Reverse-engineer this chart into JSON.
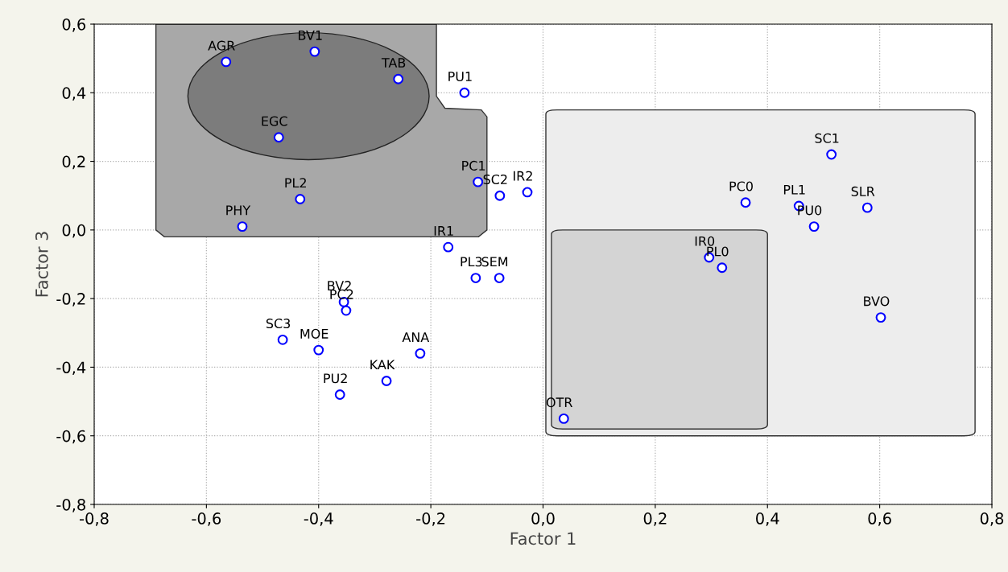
{
  "chart_data": {
    "type": "scatter",
    "xlabel": "Factor 1",
    "ylabel": "Factor 3",
    "xlim": [
      -0.8,
      0.8
    ],
    "ylim": [
      -0.8,
      0.6
    ],
    "xticks": [
      {
        "value": -0.8,
        "label": "-0,8"
      },
      {
        "value": -0.6,
        "label": "-0,6"
      },
      {
        "value": -0.4,
        "label": "-0,4"
      },
      {
        "value": -0.2,
        "label": "-0,2"
      },
      {
        "value": 0.0,
        "label": "0,0"
      },
      {
        "value": 0.2,
        "label": "0,2"
      },
      {
        "value": 0.4,
        "label": "0,4"
      },
      {
        "value": 0.6,
        "label": "0,6"
      },
      {
        "value": 0.8,
        "label": "0,8"
      }
    ],
    "yticks": [
      {
        "value": -0.8,
        "label": "-0,8"
      },
      {
        "value": -0.6,
        "label": "-0,6"
      },
      {
        "value": -0.4,
        "label": "-0,4"
      },
      {
        "value": -0.2,
        "label": "-0,2"
      },
      {
        "value": 0.0,
        "label": "0,0"
      },
      {
        "value": 0.2,
        "label": "0,2"
      },
      {
        "value": 0.4,
        "label": "0,4"
      },
      {
        "value": 0.6,
        "label": "0,6"
      }
    ],
    "grid": true,
    "marker": "circle",
    "series": [
      {
        "color": "#0000ff",
        "x": [
          -0.565,
          -0.407,
          -0.258,
          -0.14,
          -0.471,
          0.514,
          -0.116,
          -0.077,
          -0.028,
          -0.433,
          0.361,
          0.456,
          0.578,
          0.483,
          -0.536,
          -0.169,
          0.296,
          0.319,
          -0.12,
          -0.078,
          -0.355,
          -0.351,
          0.602,
          -0.464,
          -0.4,
          -0.219,
          -0.279,
          -0.362,
          0.037
        ],
        "values": [
          0.49,
          0.52,
          0.44,
          0.4,
          0.27,
          0.22,
          0.14,
          0.1,
          0.11,
          0.09,
          0.08,
          0.07,
          0.065,
          0.01,
          0.01,
          -0.05,
          -0.08,
          -0.11,
          -0.14,
          -0.14,
          -0.21,
          -0.235,
          -0.255,
          -0.32,
          -0.35,
          -0.36,
          -0.44,
          -0.48,
          -0.55
        ]
      }
    ],
    "annotations": [
      {
        "text": "AGR",
        "x": -0.565,
        "y": 0.49
      },
      {
        "text": "BV1",
        "x": -0.407,
        "y": 0.52
      },
      {
        "text": "TAB",
        "x": -0.258,
        "y": 0.44
      },
      {
        "text": "PU1",
        "x": -0.14,
        "y": 0.4
      },
      {
        "text": "EGC",
        "x": -0.471,
        "y": 0.27
      },
      {
        "text": "SC1",
        "x": 0.514,
        "y": 0.22
      },
      {
        "text": "PC1",
        "x": -0.116,
        "y": 0.14
      },
      {
        "text": "SC2",
        "x": -0.077,
        "y": 0.1
      },
      {
        "text": "IR2",
        "x": -0.028,
        "y": 0.11
      },
      {
        "text": "PL2",
        "x": -0.433,
        "y": 0.09
      },
      {
        "text": "PC0",
        "x": 0.361,
        "y": 0.08
      },
      {
        "text": "PL1",
        "x": 0.456,
        "y": 0.07
      },
      {
        "text": "SLR",
        "x": 0.578,
        "y": 0.065
      },
      {
        "text": "PU0",
        "x": 0.483,
        "y": 0.01
      },
      {
        "text": "PHY",
        "x": -0.536,
        "y": 0.01
      },
      {
        "text": "IR1",
        "x": -0.169,
        "y": -0.05
      },
      {
        "text": "IR0",
        "x": 0.296,
        "y": -0.08
      },
      {
        "text": "PL0",
        "x": 0.319,
        "y": -0.11
      },
      {
        "text": "PL3",
        "x": -0.12,
        "y": -0.14
      },
      {
        "text": "SEM",
        "x": -0.078,
        "y": -0.14
      },
      {
        "text": "BV2",
        "x": -0.355,
        "y": -0.21
      },
      {
        "text": "PC2",
        "x": -0.351,
        "y": -0.235
      },
      {
        "text": "BVO",
        "x": 0.602,
        "y": -0.255
      },
      {
        "text": "SC3",
        "x": -0.464,
        "y": -0.32
      },
      {
        "text": "MOE",
        "x": -0.4,
        "y": -0.35
      },
      {
        "text": "ANA",
        "x": -0.219,
        "y": -0.36
      },
      {
        "text": "KAK",
        "x": -0.279,
        "y": -0.44
      },
      {
        "text": "PU2",
        "x": -0.362,
        "y": -0.48
      },
      {
        "text": "OTR",
        "x": 0.037,
        "y": -0.55
      }
    ]
  }
}
